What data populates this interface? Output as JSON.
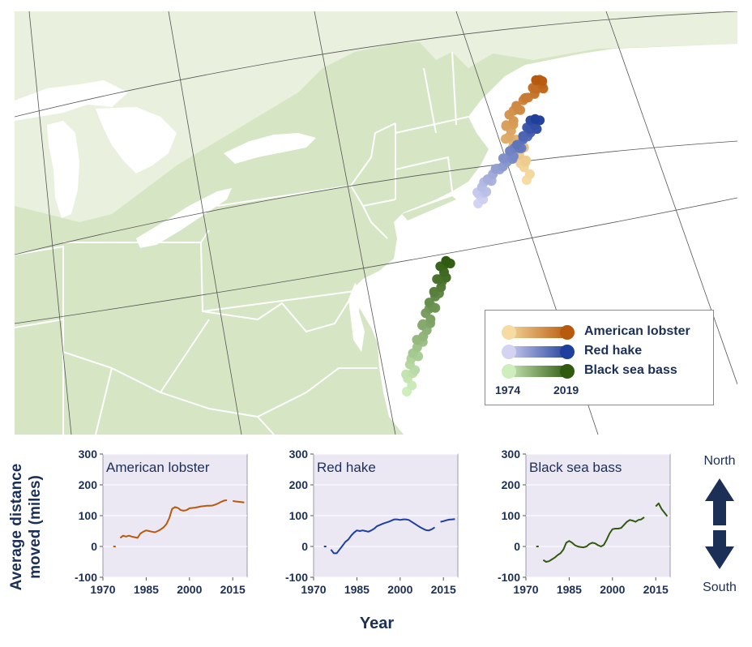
{
  "legend": {
    "species": [
      {
        "label": "American lobster",
        "color_light": "#f6dca2",
        "color_dark": "#b85a0d"
      },
      {
        "label": "Red hake",
        "color_light": "#d4d4f2",
        "color_dark": "#1f3f9c"
      },
      {
        "label": "Black sea bass",
        "color_light": "#cfeebd",
        "color_dark": "#2f5a10"
      }
    ],
    "start_year": "1974",
    "end_year": "2019"
  },
  "y_axis_title": "Average distance moved (miles)",
  "x_axis_title": "Year",
  "direction": {
    "north": "North",
    "south": "South",
    "arrow_color": "#1b2f57"
  },
  "map_colors": {
    "land": "#d6e5c4",
    "land_light": "#e9f1de",
    "water": "#ffffff",
    "border": "#ffffff",
    "grid": "#555555"
  },
  "chart_data": [
    {
      "type": "line",
      "title": "American lobster",
      "color": "#b85a0d",
      "xlim": [
        1970,
        2020
      ],
      "ylim": [
        -100,
        300
      ],
      "xticks": [
        1970,
        1985,
        2000,
        2015
      ],
      "yticks": [
        300,
        200,
        100,
        0,
        -100
      ],
      "x": [
        1974,
        1975,
        1976,
        1977,
        1978,
        1979,
        1980,
        1981,
        1982,
        1983,
        1984,
        1985,
        1986,
        1987,
        1988,
        1989,
        1990,
        1991,
        1992,
        1993,
        1994,
        1995,
        1996,
        1997,
        1998,
        1999,
        2000,
        2001,
        2002,
        2003,
        2004,
        2005,
        2006,
        2007,
        2008,
        2009,
        2010,
        2011,
        2012,
        2013,
        2014,
        2015,
        2016,
        2017,
        2018,
        2019
      ],
      "y": [
        0,
        null,
        28,
        35,
        32,
        35,
        32,
        30,
        28,
        42,
        48,
        52,
        50,
        48,
        46,
        50,
        55,
        62,
        72,
        92,
        122,
        128,
        125,
        118,
        116,
        118,
        124,
        125,
        126,
        128,
        130,
        131,
        132,
        132,
        133,
        136,
        140,
        145,
        149,
        150,
        null,
        148,
        146,
        145,
        144,
        143
      ]
    },
    {
      "type": "line",
      "title": "Red hake",
      "color": "#1f3f9c",
      "xlim": [
        1970,
        2020
      ],
      "ylim": [
        -100,
        300
      ],
      "xticks": [
        1970,
        1985,
        2000,
        2015
      ],
      "yticks": [
        300,
        200,
        100,
        0,
        -100
      ],
      "x": [
        1974,
        1975,
        1976,
        1977,
        1978,
        1979,
        1980,
        1981,
        1982,
        1983,
        1984,
        1985,
        1986,
        1987,
        1988,
        1989,
        1990,
        1991,
        1992,
        1993,
        1994,
        1995,
        1996,
        1997,
        1998,
        1999,
        2000,
        2001,
        2002,
        2003,
        2004,
        2005,
        2006,
        2007,
        2008,
        2009,
        2010,
        2011,
        2012,
        2013,
        2014,
        2015,
        2016,
        2017,
        2018,
        2019
      ],
      "y": [
        0,
        null,
        -10,
        -22,
        -22,
        -10,
        2,
        15,
        22,
        35,
        45,
        52,
        50,
        52,
        50,
        48,
        52,
        58,
        66,
        70,
        74,
        77,
        80,
        84,
        88,
        88,
        86,
        88,
        88,
        86,
        80,
        74,
        68,
        62,
        57,
        53,
        52,
        56,
        62,
        null,
        80,
        82,
        85,
        87,
        88,
        89
      ]
    },
    {
      "type": "line",
      "title": "Black sea bass",
      "color": "#2f5a10",
      "xlim": [
        1970,
        2020
      ],
      "ylim": [
        -100,
        300
      ],
      "xticks": [
        1970,
        1985,
        2000,
        2015
      ],
      "yticks": [
        300,
        200,
        100,
        0,
        -100
      ],
      "x": [
        1974,
        1975,
        1976,
        1977,
        1978,
        1979,
        1980,
        1981,
        1982,
        1983,
        1984,
        1985,
        1986,
        1987,
        1988,
        1989,
        1990,
        1991,
        1992,
        1993,
        1994,
        1995,
        1996,
        1997,
        1998,
        1999,
        2000,
        2001,
        2002,
        2003,
        2004,
        2005,
        2006,
        2007,
        2008,
        2009,
        2010,
        2011,
        2012,
        2013,
        2014,
        2015,
        2016,
        2017,
        2018,
        2019
      ],
      "y": [
        0,
        null,
        -44,
        -50,
        -48,
        -42,
        -36,
        -28,
        -22,
        -10,
        12,
        18,
        12,
        4,
        0,
        -2,
        -3,
        0,
        8,
        12,
        10,
        4,
        0,
        5,
        22,
        42,
        56,
        58,
        58,
        60,
        70,
        80,
        86,
        84,
        80,
        86,
        88,
        95,
        null,
        null,
        null,
        130,
        140,
        122,
        110,
        98
      ]
    }
  ]
}
